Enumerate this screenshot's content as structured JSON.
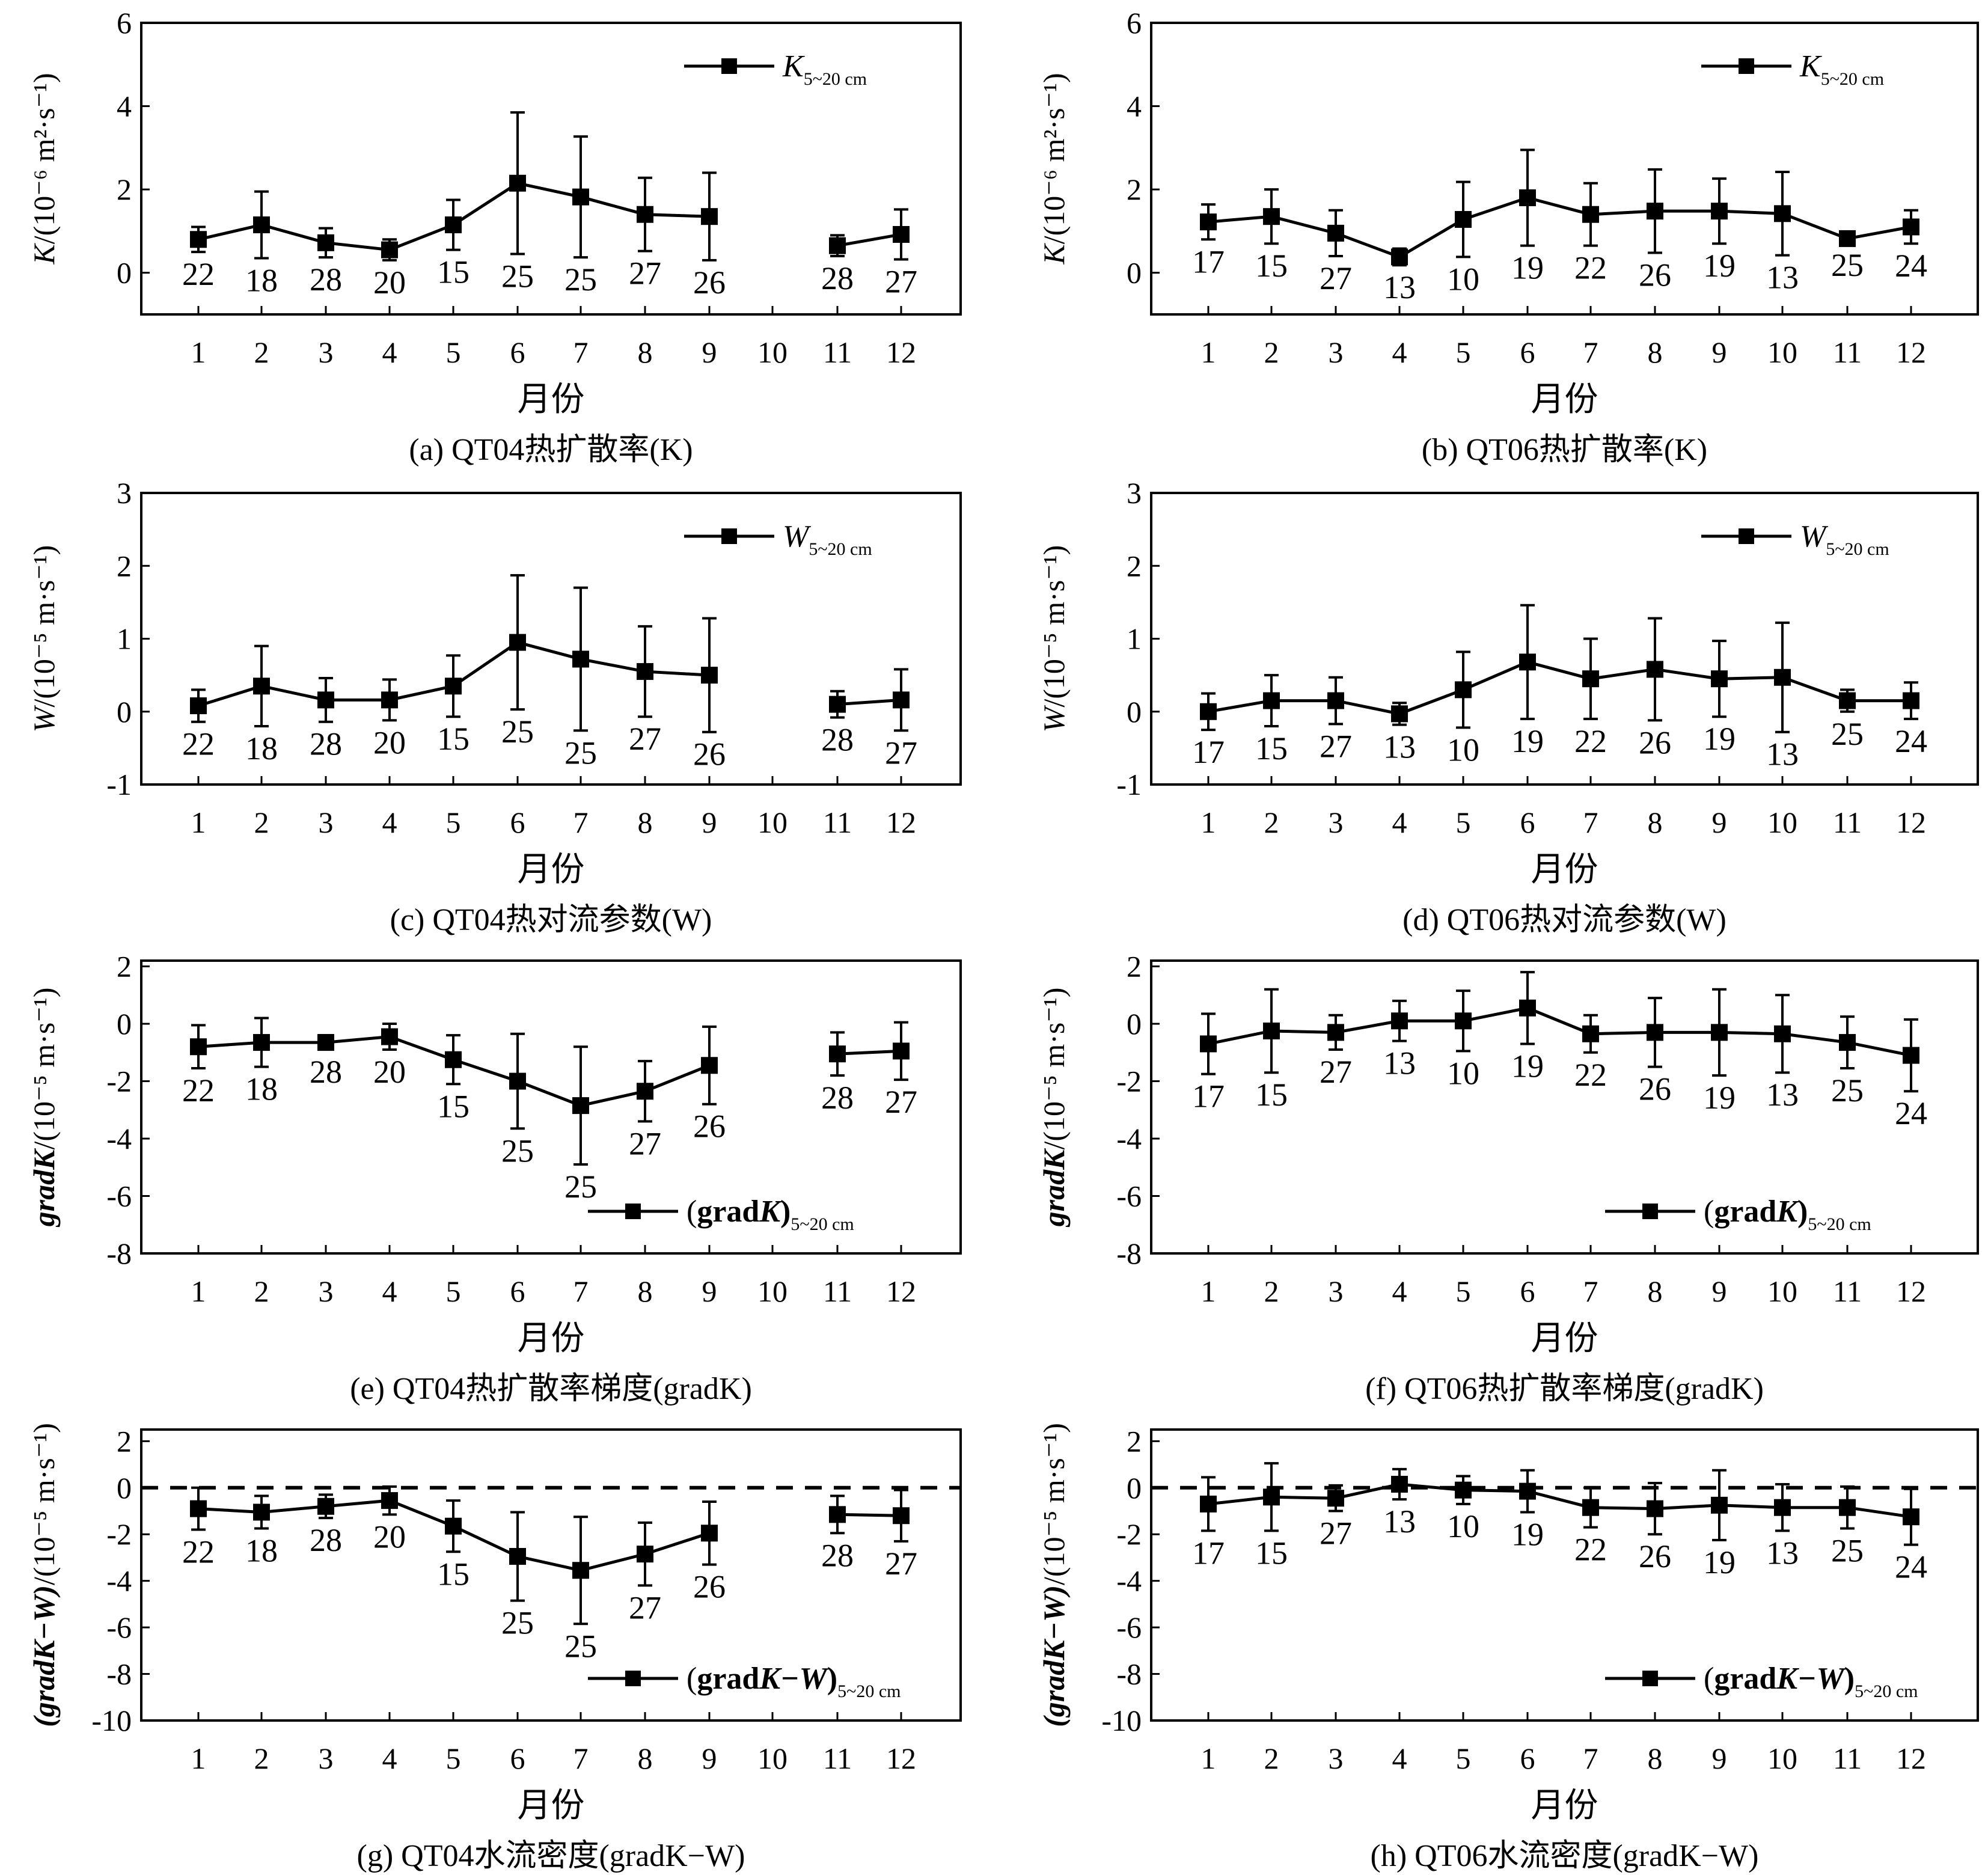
{
  "x_axis_label": "月份",
  "chart_data": [
    {
      "id": "a",
      "type": "line",
      "caption": "(a) QT04热扩散率(K)",
      "y_label_main": "K",
      "y_label_unit": "/(10⁻⁶ m²·s⁻¹)",
      "legend": {
        "symbol": "K",
        "subscript": "5~20 cm",
        "position": "top-right"
      },
      "x": [
        1,
        2,
        3,
        4,
        5,
        6,
        7,
        8,
        9,
        10,
        11,
        12
      ],
      "xticks": [
        "1",
        "2",
        "3",
        "4",
        "5",
        "6",
        "7",
        "8",
        "9",
        "10",
        "11",
        "12"
      ],
      "ylim": [
        -1,
        6
      ],
      "yticks": [
        0,
        2,
        4,
        6
      ],
      "zero_line": false,
      "series": [
        {
          "values": [
            0.8,
            1.15,
            0.72,
            0.55,
            1.15,
            2.15,
            1.82,
            1.4,
            1.35,
            null,
            0.65,
            0.92
          ],
          "err": [
            0.3,
            0.8,
            0.35,
            0.25,
            0.6,
            1.7,
            1.45,
            0.88,
            1.05,
            null,
            0.25,
            0.6
          ]
        }
      ],
      "counts": [
        "22",
        "18",
        "28",
        "20",
        "15",
        "25",
        "25",
        "27",
        "26",
        null,
        "28",
        "27"
      ]
    },
    {
      "id": "b",
      "type": "line",
      "caption": "(b) QT06热扩散率(K)",
      "y_label_main": "K",
      "y_label_unit": "/(10⁻⁶ m²·s⁻¹)",
      "legend": {
        "symbol": "K",
        "subscript": "5~20 cm",
        "position": "top-right"
      },
      "x": [
        1,
        2,
        3,
        4,
        5,
        6,
        7,
        8,
        9,
        10,
        11,
        12
      ],
      "xticks": [
        "1",
        "2",
        "3",
        "4",
        "5",
        "6",
        "7",
        "8",
        "9",
        "10",
        "11",
        "12"
      ],
      "ylim": [
        -1,
        6
      ],
      "yticks": [
        0,
        2,
        4,
        6
      ],
      "zero_line": false,
      "series": [
        {
          "values": [
            1.22,
            1.35,
            0.95,
            0.38,
            1.28,
            1.8,
            1.4,
            1.48,
            1.48,
            1.42,
            0.82,
            1.1
          ],
          "err": [
            0.42,
            0.65,
            0.55,
            0.2,
            0.9,
            1.15,
            0.75,
            1.0,
            0.78,
            1.0,
            0.1,
            0.4
          ]
        }
      ],
      "counts": [
        "17",
        "15",
        "27",
        "13",
        "10",
        "19",
        "22",
        "26",
        "19",
        "13",
        "25",
        "24"
      ]
    },
    {
      "id": "c",
      "type": "line",
      "caption": "(c) QT04热对流参数(W)",
      "y_label_main": "W",
      "y_label_unit": "/(10⁻⁵ m·s⁻¹)",
      "legend": {
        "symbol": "W",
        "subscript": "5~20 cm",
        "position": "top-right"
      },
      "x": [
        1,
        2,
        3,
        4,
        5,
        6,
        7,
        8,
        9,
        10,
        11,
        12
      ],
      "xticks": [
        "1",
        "2",
        "3",
        "4",
        "5",
        "6",
        "7",
        "8",
        "9",
        "10",
        "11",
        "12"
      ],
      "ylim": [
        -1,
        3
      ],
      "yticks": [
        -1,
        0,
        1,
        2,
        3
      ],
      "zero_line": false,
      "series": [
        {
          "values": [
            0.08,
            0.35,
            0.16,
            0.16,
            0.35,
            0.95,
            0.72,
            0.55,
            0.5,
            null,
            0.1,
            0.16
          ],
          "err": [
            0.22,
            0.55,
            0.3,
            0.28,
            0.42,
            0.92,
            0.98,
            0.62,
            0.78,
            null,
            0.18,
            0.42
          ]
        }
      ],
      "counts": [
        "22",
        "18",
        "28",
        "20",
        "15",
        "25",
        "25",
        "27",
        "26",
        null,
        "28",
        "27"
      ]
    },
    {
      "id": "d",
      "type": "line",
      "caption": "(d) QT06热对流参数(W)",
      "y_label_main": "W",
      "y_label_unit": "/(10⁻⁵ m·s⁻¹)",
      "legend": {
        "symbol": "W",
        "subscript": "5~20 cm",
        "position": "top-right"
      },
      "x": [
        1,
        2,
        3,
        4,
        5,
        6,
        7,
        8,
        9,
        10,
        11,
        12
      ],
      "xticks": [
        "1",
        "2",
        "3",
        "4",
        "5",
        "6",
        "7",
        "8",
        "9",
        "10",
        "11",
        "12"
      ],
      "ylim": [
        -1,
        3
      ],
      "yticks": [
        -1,
        0,
        1,
        2,
        3
      ],
      "zero_line": false,
      "series": [
        {
          "values": [
            0.0,
            0.15,
            0.15,
            -0.03,
            0.3,
            0.68,
            0.45,
            0.58,
            0.45,
            0.47,
            0.15,
            0.15
          ],
          "err": [
            0.25,
            0.35,
            0.32,
            0.15,
            0.52,
            0.78,
            0.55,
            0.7,
            0.52,
            0.75,
            0.15,
            0.25
          ]
        }
      ],
      "counts": [
        "17",
        "15",
        "27",
        "13",
        "10",
        "19",
        "22",
        "26",
        "19",
        "13",
        "25",
        "24"
      ]
    },
    {
      "id": "e",
      "type": "line",
      "caption": "(e) QT04热扩散率梯度(gradK)",
      "y_label_main": "gradK",
      "y_label_unit": "/(10⁻⁵ m·s⁻¹)",
      "legend": {
        "symbol": "(gradK)",
        "subscript": "5~20 cm",
        "position": "bottom-right"
      },
      "x": [
        1,
        2,
        3,
        4,
        5,
        6,
        7,
        8,
        9,
        10,
        11,
        12
      ],
      "xticks": [
        "1",
        "2",
        "3",
        "4",
        "5",
        "6",
        "7",
        "8",
        "9",
        "10",
        "11",
        "12"
      ],
      "ylim": [
        -8,
        2.2
      ],
      "yticks": [
        -8,
        -6,
        -4,
        -2,
        0,
        2
      ],
      "zero_line": false,
      "series": [
        {
          "values": [
            -0.8,
            -0.65,
            -0.65,
            -0.45,
            -1.25,
            -2.0,
            -2.85,
            -2.35,
            -1.45,
            null,
            -1.05,
            -0.95
          ],
          "err": [
            0.75,
            0.85,
            0.25,
            0.45,
            0.85,
            1.65,
            2.05,
            1.05,
            1.35,
            null,
            0.75,
            1.0
          ]
        }
      ],
      "counts": [
        "22",
        "18",
        "28",
        "20",
        "15",
        "25",
        "25",
        "27",
        "26",
        null,
        "28",
        "27"
      ]
    },
    {
      "id": "f",
      "type": "line",
      "caption": "(f) QT06热扩散率梯度(gradK)",
      "y_label_main": "gradK",
      "y_label_unit": "/(10⁻⁵ m·s⁻¹)",
      "legend": {
        "symbol": "(gradK)",
        "subscript": "5~20 cm",
        "position": "bottom-right"
      },
      "x": [
        1,
        2,
        3,
        4,
        5,
        6,
        7,
        8,
        9,
        10,
        11,
        12
      ],
      "xticks": [
        "1",
        "2",
        "3",
        "4",
        "5",
        "6",
        "7",
        "8",
        "9",
        "10",
        "11",
        "12"
      ],
      "ylim": [
        -8,
        2.2
      ],
      "yticks": [
        -8,
        -6,
        -4,
        -2,
        0,
        2
      ],
      "zero_line": false,
      "series": [
        {
          "values": [
            -0.7,
            -0.25,
            -0.3,
            0.1,
            0.1,
            0.55,
            -0.35,
            -0.3,
            -0.3,
            -0.35,
            -0.65,
            -1.1
          ],
          "err": [
            1.05,
            1.45,
            0.6,
            0.7,
            1.05,
            1.25,
            0.65,
            1.2,
            1.5,
            1.35,
            0.9,
            1.25
          ]
        }
      ],
      "counts": [
        "17",
        "15",
        "27",
        "13",
        "10",
        "19",
        "22",
        "26",
        "19",
        "13",
        "25",
        "24"
      ]
    },
    {
      "id": "g",
      "type": "line",
      "caption": "(g) QT04水流密度(gradK−W)",
      "y_label_main": "(gradK−W)",
      "y_label_unit": "/(10⁻⁵ m·s⁻¹)",
      "legend": {
        "symbol": "(gradK−W)",
        "subscript": "5~20 cm",
        "position": "bottom-right"
      },
      "x": [
        1,
        2,
        3,
        4,
        5,
        6,
        7,
        8,
        9,
        10,
        11,
        12
      ],
      "xticks": [
        "1",
        "2",
        "3",
        "4",
        "5",
        "6",
        "7",
        "8",
        "9",
        "10",
        "11",
        "12"
      ],
      "ylim": [
        -10,
        2.5
      ],
      "yticks": [
        -10,
        -8,
        -6,
        -4,
        -2,
        0,
        2
      ],
      "zero_line": true,
      "series": [
        {
          "values": [
            -0.9,
            -1.05,
            -0.8,
            -0.55,
            -1.65,
            -2.95,
            -3.55,
            -2.85,
            -1.95,
            null,
            -1.15,
            -1.2
          ],
          "err": [
            0.9,
            0.7,
            0.5,
            0.6,
            1.1,
            1.9,
            2.3,
            1.35,
            1.35,
            null,
            0.8,
            1.1
          ]
        }
      ],
      "counts": [
        "22",
        "18",
        "28",
        "20",
        "15",
        "25",
        "25",
        "27",
        "26",
        null,
        "28",
        "27"
      ]
    },
    {
      "id": "h",
      "type": "line",
      "caption": "(h) QT06水流密度(gradK−W)",
      "y_label_main": "(gradK−W)",
      "y_label_unit": "/(10⁻⁵ m·s⁻¹)",
      "legend": {
        "symbol": "(gradK−W)",
        "subscript": "5~20 cm",
        "position": "bottom-right"
      },
      "x": [
        1,
        2,
        3,
        4,
        5,
        6,
        7,
        8,
        9,
        10,
        11,
        12
      ],
      "xticks": [
        "1",
        "2",
        "3",
        "4",
        "5",
        "6",
        "7",
        "8",
        "9",
        "10",
        "11",
        "12"
      ],
      "ylim": [
        -10,
        2.5
      ],
      "yticks": [
        -10,
        -8,
        -6,
        -4,
        -2,
        0,
        2
      ],
      "zero_line": true,
      "series": [
        {
          "values": [
            -0.7,
            -0.4,
            -0.45,
            0.15,
            -0.1,
            -0.15,
            -0.85,
            -0.9,
            -0.75,
            -0.85,
            -0.85,
            -1.25
          ],
          "err": [
            1.15,
            1.45,
            0.55,
            0.65,
            0.6,
            0.9,
            0.85,
            1.1,
            1.5,
            1.0,
            0.9,
            1.2
          ]
        }
      ],
      "counts": [
        "17",
        "15",
        "27",
        "13",
        "10",
        "19",
        "22",
        "26",
        "19",
        "13",
        "25",
        "24"
      ]
    }
  ]
}
